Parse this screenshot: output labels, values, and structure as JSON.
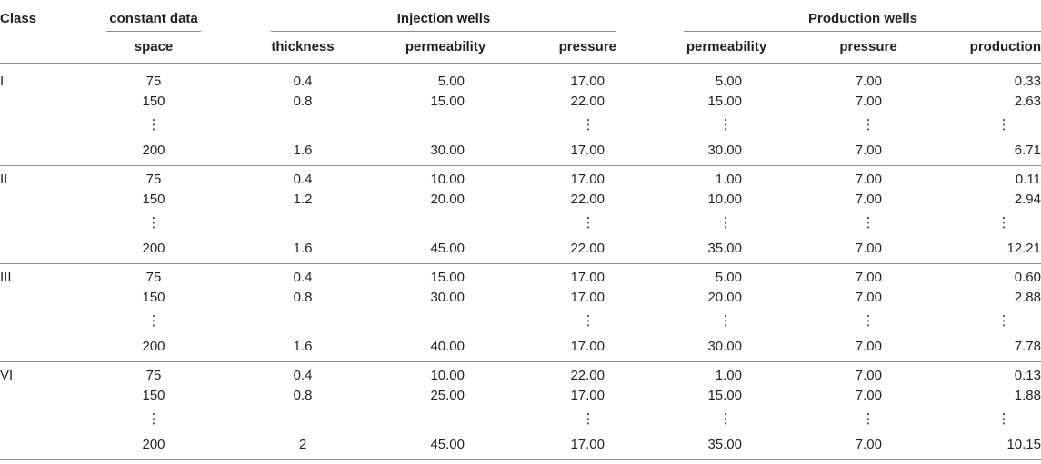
{
  "header": {
    "class": "Class",
    "constant_data": "constant data",
    "injection_wells": "Injection wells",
    "production_wells": "Production wells",
    "space": "space",
    "thickness": "thickness",
    "inj_permeability": "permeability",
    "inj_pressure": "pressure",
    "prod_permeability": "permeability",
    "prod_pressure": "pressure",
    "production": "production"
  },
  "groups": [
    {
      "label": "I",
      "rows": [
        [
          "75",
          "0.4",
          "5.00",
          "17.00",
          "5.00",
          "7.00",
          "0.33"
        ],
        [
          "150",
          "0.8",
          "15.00",
          "22.00",
          "15.00",
          "7.00",
          "2.63"
        ],
        [
          "⋮",
          "",
          "",
          "⋮",
          "⋮",
          "⋮",
          "⋮"
        ],
        [
          "200",
          "1.6",
          "30.00",
          "17.00",
          "30.00",
          "7.00",
          "6.71"
        ]
      ]
    },
    {
      "label": "II",
      "rows": [
        [
          "75",
          "0.4",
          "10.00",
          "17.00",
          "1.00",
          "7.00",
          "0.11"
        ],
        [
          "150",
          "1.2",
          "20.00",
          "22.00",
          "10.00",
          "7.00",
          "2.94"
        ],
        [
          "⋮",
          "",
          "",
          "⋮",
          "⋮",
          "⋮",
          "⋮"
        ],
        [
          "200",
          "1.6",
          "45.00",
          "22.00",
          "35.00",
          "7.00",
          "12.21"
        ]
      ]
    },
    {
      "label": "III",
      "rows": [
        [
          "75",
          "0.4",
          "15.00",
          "17.00",
          "5.00",
          "7.00",
          "0.60"
        ],
        [
          "150",
          "0.8",
          "30.00",
          "17.00",
          "20.00",
          "7.00",
          "2.88"
        ],
        [
          "⋮",
          "",
          "",
          "⋮",
          "⋮",
          "⋮",
          "⋮"
        ],
        [
          "200",
          "1.6",
          "40.00",
          "17.00",
          "30.00",
          "7.00",
          "7.78"
        ]
      ]
    },
    {
      "label": "VI",
      "rows": [
        [
          "75",
          "0.4",
          "10.00",
          "22.00",
          "1.00",
          "7.00",
          "0.13"
        ],
        [
          "150",
          "0.8",
          "25.00",
          "17.00",
          "15.00",
          "7.00",
          "1.88"
        ],
        [
          "⋮",
          "",
          "",
          "⋮",
          "⋮",
          "⋮",
          "⋮"
        ],
        [
          "200",
          "2",
          "45.00",
          "17.00",
          "35.00",
          "7.00",
          "10.15"
        ]
      ]
    }
  ]
}
